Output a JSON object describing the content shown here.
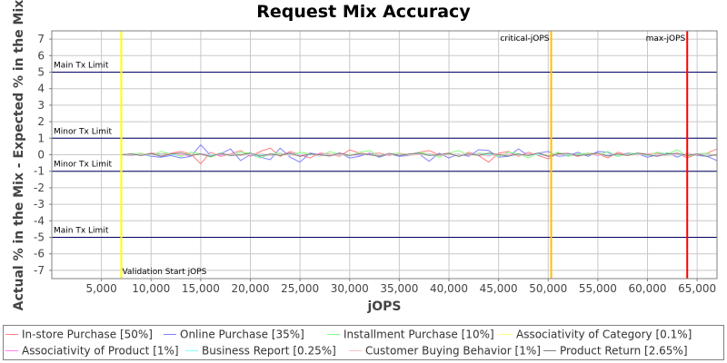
{
  "chart_data": {
    "type": "line",
    "title": "Request Mix Accuracy",
    "xlabel": "jOPS",
    "ylabel": "Actual % in the Mix - Expected % in the Mix",
    "xlim": [
      0,
      67000
    ],
    "ylim": [
      -7.5,
      7.5
    ],
    "x_ticks": [
      5000,
      10000,
      15000,
      20000,
      25000,
      30000,
      35000,
      40000,
      45000,
      50000,
      55000,
      60000,
      65000
    ],
    "x_tick_labels": [
      "5,000",
      "10,000",
      "15,000",
      "20,000",
      "25,000",
      "30,000",
      "35,000",
      "40,000",
      "45,000",
      "50,000",
      "55,000",
      "60,000",
      "65,000"
    ],
    "y_ticks": [
      -7,
      -6,
      -5,
      -4,
      -3,
      -2,
      -1,
      0,
      1,
      2,
      3,
      4,
      5,
      6,
      7
    ],
    "y_tick_labels": [
      "-7",
      "-6",
      "-5",
      "-4",
      "-3",
      "-2",
      "-1",
      "0",
      "1",
      "2",
      "3",
      "4",
      "5",
      "6",
      "7"
    ],
    "grid": true,
    "legend_position": "bottom",
    "horizontal_lines": [
      {
        "y": 5,
        "label": "Main Tx Limit",
        "color": "#000066"
      },
      {
        "y": 1,
        "label": "Minor Tx Limit",
        "color": "#000066"
      },
      {
        "y": -1,
        "label": "Minor Tx Limit",
        "color": "#000066"
      },
      {
        "y": -5,
        "label": "Main Tx Limit",
        "color": "#000066"
      }
    ],
    "vertical_lines": [
      {
        "x": 7000,
        "label": "Validation Start jOPS",
        "color": "#ffff00"
      },
      {
        "x": 50300,
        "label": "critical-jOPS",
        "color": "#ffc000"
      },
      {
        "x": 64000,
        "label": "max-jOPS",
        "color": "#ff0000"
      }
    ],
    "x": [
      7000,
      8000,
      9000,
      10000,
      11000,
      12000,
      13000,
      14000,
      15000,
      16000,
      17000,
      18000,
      19000,
      20000,
      21000,
      22000,
      23000,
      24000,
      25000,
      26000,
      27000,
      28000,
      29000,
      30000,
      31000,
      32000,
      33000,
      34000,
      35000,
      36000,
      37000,
      38000,
      39000,
      40000,
      41000,
      42000,
      43000,
      44000,
      45000,
      46000,
      47000,
      48000,
      49000,
      50000,
      51000,
      52000,
      53000,
      54000,
      55000,
      56000,
      57000,
      58000,
      59000,
      60000,
      61000,
      62000,
      63000,
      64000,
      65000,
      66000,
      67000
    ],
    "series": [
      {
        "name": "In-store Purchase [50%]",
        "color": "#ff8080",
        "values": [
          0,
          0.05,
          -0.05,
          0.1,
          0.05,
          0.1,
          0.2,
          0.05,
          -0.55,
          0.15,
          -0.1,
          0.05,
          0.25,
          -0.1,
          0.2,
          0.4,
          -0.1,
          0.2,
          0,
          -0.2,
          0.1,
          0.05,
          -0.1,
          0.3,
          0.1,
          0.05,
          0.1,
          -0.05,
          0.1,
          0,
          0.15,
          0.25,
          0,
          0.1,
          -0.1,
          0.15,
          -0.05,
          -0.45,
          0.1,
          0.2,
          -0.1,
          0.15,
          -0.05,
          -0.25,
          0.1,
          0.05,
          -0.1,
          0.1,
          0.05,
          -0.2,
          0.15,
          0,
          0.1,
          0.05,
          0.1,
          -0.05,
          0.1,
          -0.2,
          0.05,
          0.1,
          0.35
        ]
      },
      {
        "name": "Online Purchase [35%]",
        "color": "#8080ff",
        "values": [
          0,
          -0.05,
          0.05,
          -0.1,
          -0.15,
          -0.05,
          -0.2,
          -0.1,
          0.6,
          -0.05,
          0.05,
          0.35,
          -0.35,
          0,
          -0.15,
          -0.3,
          0.4,
          -0.15,
          -0.45,
          0.1,
          0,
          -0.05,
          0.1,
          -0.2,
          -0.1,
          0.1,
          -0.15,
          0.05,
          -0.1,
          -0.05,
          0.05,
          -0.4,
          0.1,
          -0.2,
          0.05,
          -0.1,
          0.3,
          0.25,
          -0.15,
          -0.1,
          0.35,
          -0.05,
          0.1,
          0.2,
          -0.1,
          -0.05,
          0.15,
          -0.1,
          0.2,
          0.15,
          -0.1,
          0.1,
          0.05,
          -0.15,
          0,
          0.1,
          -0.15,
          0.1,
          -0.05,
          -0.1,
          -0.35
        ]
      },
      {
        "name": "Installment Purchase [10%]",
        "color": "#80ff80",
        "values": [
          0,
          0.05,
          0.1,
          -0.05,
          0.2,
          0.05,
          -0.1,
          0.15,
          0.05,
          -0.15,
          0.1,
          -0.05,
          0.15,
          0.1,
          -0.2,
          0.05,
          0.1,
          -0.05,
          0.15,
          0.05,
          -0.1,
          0.2,
          0,
          -0.05,
          0.15,
          0.25,
          -0.1,
          0.05,
          0.1,
          -0.05,
          0.15,
          0.05,
          -0.15,
          0.1,
          0.25,
          -0.05,
          0.1,
          0.05,
          -0.1,
          0.15,
          0.05,
          -0.2,
          0.1,
          -0.05,
          0.15,
          -0.1,
          0.05,
          0.1,
          -0.05,
          0.2,
          -0.1,
          0.05,
          0.1,
          -0.05,
          0.15,
          0.05,
          0.3,
          -0.1,
          0.05,
          0.1,
          -0.05
        ]
      },
      {
        "name": "Associativity of Category [0.1%]",
        "color": "#ffff80",
        "values": [
          0,
          0,
          0.02,
          -0.02,
          0,
          0.02,
          0,
          -0.02,
          0,
          0.02,
          0,
          -0.02,
          0,
          0.02,
          0,
          0,
          -0.02,
          0,
          0.02,
          0,
          0,
          -0.02,
          0,
          0.02,
          0,
          0,
          -0.02,
          0,
          0.02,
          0,
          0,
          -0.02,
          0,
          0.02,
          0,
          0,
          -0.02,
          0,
          0.02,
          0,
          0,
          -0.02,
          0,
          0.02,
          0,
          0,
          -0.02,
          0,
          0.02,
          0,
          0,
          -0.02,
          0,
          0.02,
          0,
          0,
          -0.02,
          0,
          0.02,
          0,
          0
        ]
      },
      {
        "name": "Associativity of Product [1%]",
        "color": "#ff80ff",
        "values": [
          0,
          0.03,
          -0.03,
          0.05,
          -0.05,
          0.03,
          0,
          -0.05,
          0.05,
          0,
          -0.03,
          0.05,
          -0.05,
          0.03,
          0,
          -0.05,
          0.03,
          0.05,
          -0.03,
          0,
          0.05,
          -0.05,
          0.03,
          0,
          -0.03,
          0.05,
          -0.05,
          0,
          0.03,
          -0.03,
          0.05,
          0,
          -0.05,
          0.03,
          0,
          -0.03,
          0.05,
          -0.05,
          0,
          0.03,
          -0.03,
          0.05,
          0,
          -0.05,
          0.03,
          0,
          -0.03,
          0.05,
          -0.05,
          0,
          0.03,
          -0.03,
          0.05,
          0,
          -0.05,
          0.03,
          0,
          -0.03,
          0.05,
          0,
          -0.05
        ]
      },
      {
        "name": "Business Report [0.25%]",
        "color": "#80ffff",
        "values": [
          0,
          0.02,
          0,
          -0.02,
          0.03,
          0,
          -0.03,
          0.02,
          0,
          -0.02,
          0.03,
          0,
          -0.02,
          0.02,
          0,
          -0.03,
          0.02,
          0,
          0.03,
          -0.02,
          0,
          0.02,
          -0.03,
          0,
          0.02,
          0,
          -0.02,
          0.03,
          0,
          -0.02,
          0.02,
          0,
          -0.03,
          0.02,
          0,
          0.03,
          -0.02,
          0,
          0.02,
          -0.03,
          0,
          0.02,
          0,
          -0.02,
          0.03,
          0,
          -0.02,
          0.02,
          0,
          -0.03,
          0.02,
          0,
          0.03,
          -0.02,
          0,
          0.02,
          -0.03,
          0,
          0.02,
          0,
          -0.02
        ]
      },
      {
        "name": "Customer Buying Behavior [1%]",
        "color": "#ffc0c0",
        "values": [
          0,
          -0.03,
          0.05,
          0,
          -0.05,
          0.08,
          -0.03,
          0.05,
          0,
          -0.08,
          0.05,
          0.03,
          -0.05,
          0,
          0.08,
          -0.03,
          0.05,
          -0.05,
          0,
          0.03,
          -0.08,
          0.05,
          0,
          -0.03,
          0.08,
          0,
          -0.05,
          0.03,
          0.05,
          -0.03,
          0,
          0.08,
          -0.05,
          0,
          0.05,
          -0.03,
          0.03,
          -0.08,
          0.05,
          0,
          -0.05,
          0.03,
          0.08,
          -0.03,
          0,
          0.05,
          -0.05,
          0.03,
          0,
          -0.08,
          0.05,
          0,
          -0.03,
          0.05,
          0.03,
          -0.05,
          0,
          0.08,
          -0.03,
          0.05,
          0
        ]
      },
      {
        "name": "Product Return [2.65%]",
        "color": "#808080",
        "values": [
          0,
          0.05,
          -0.05,
          0.08,
          -0.1,
          0.05,
          0.1,
          -0.05,
          0.05,
          -0.1,
          0.08,
          -0.05,
          0,
          0.1,
          -0.08,
          0.05,
          -0.05,
          0.1,
          -0.1,
          0.05,
          0,
          -0.08,
          0.1,
          -0.05,
          0.05,
          0,
          -0.1,
          0.08,
          -0.05,
          0.05,
          0.1,
          -0.05,
          0,
          0.08,
          -0.1,
          0.05,
          -0.05,
          0.1,
          0,
          -0.08,
          0.05,
          -0.05,
          0.1,
          -0.1,
          0.05,
          0.08,
          -0.05,
          0,
          0.1,
          -0.08,
          0.05,
          -0.05,
          0.1,
          0,
          -0.1,
          0.05,
          0.08,
          -0.05,
          0.05,
          -0.1,
          0
        ]
      }
    ]
  }
}
